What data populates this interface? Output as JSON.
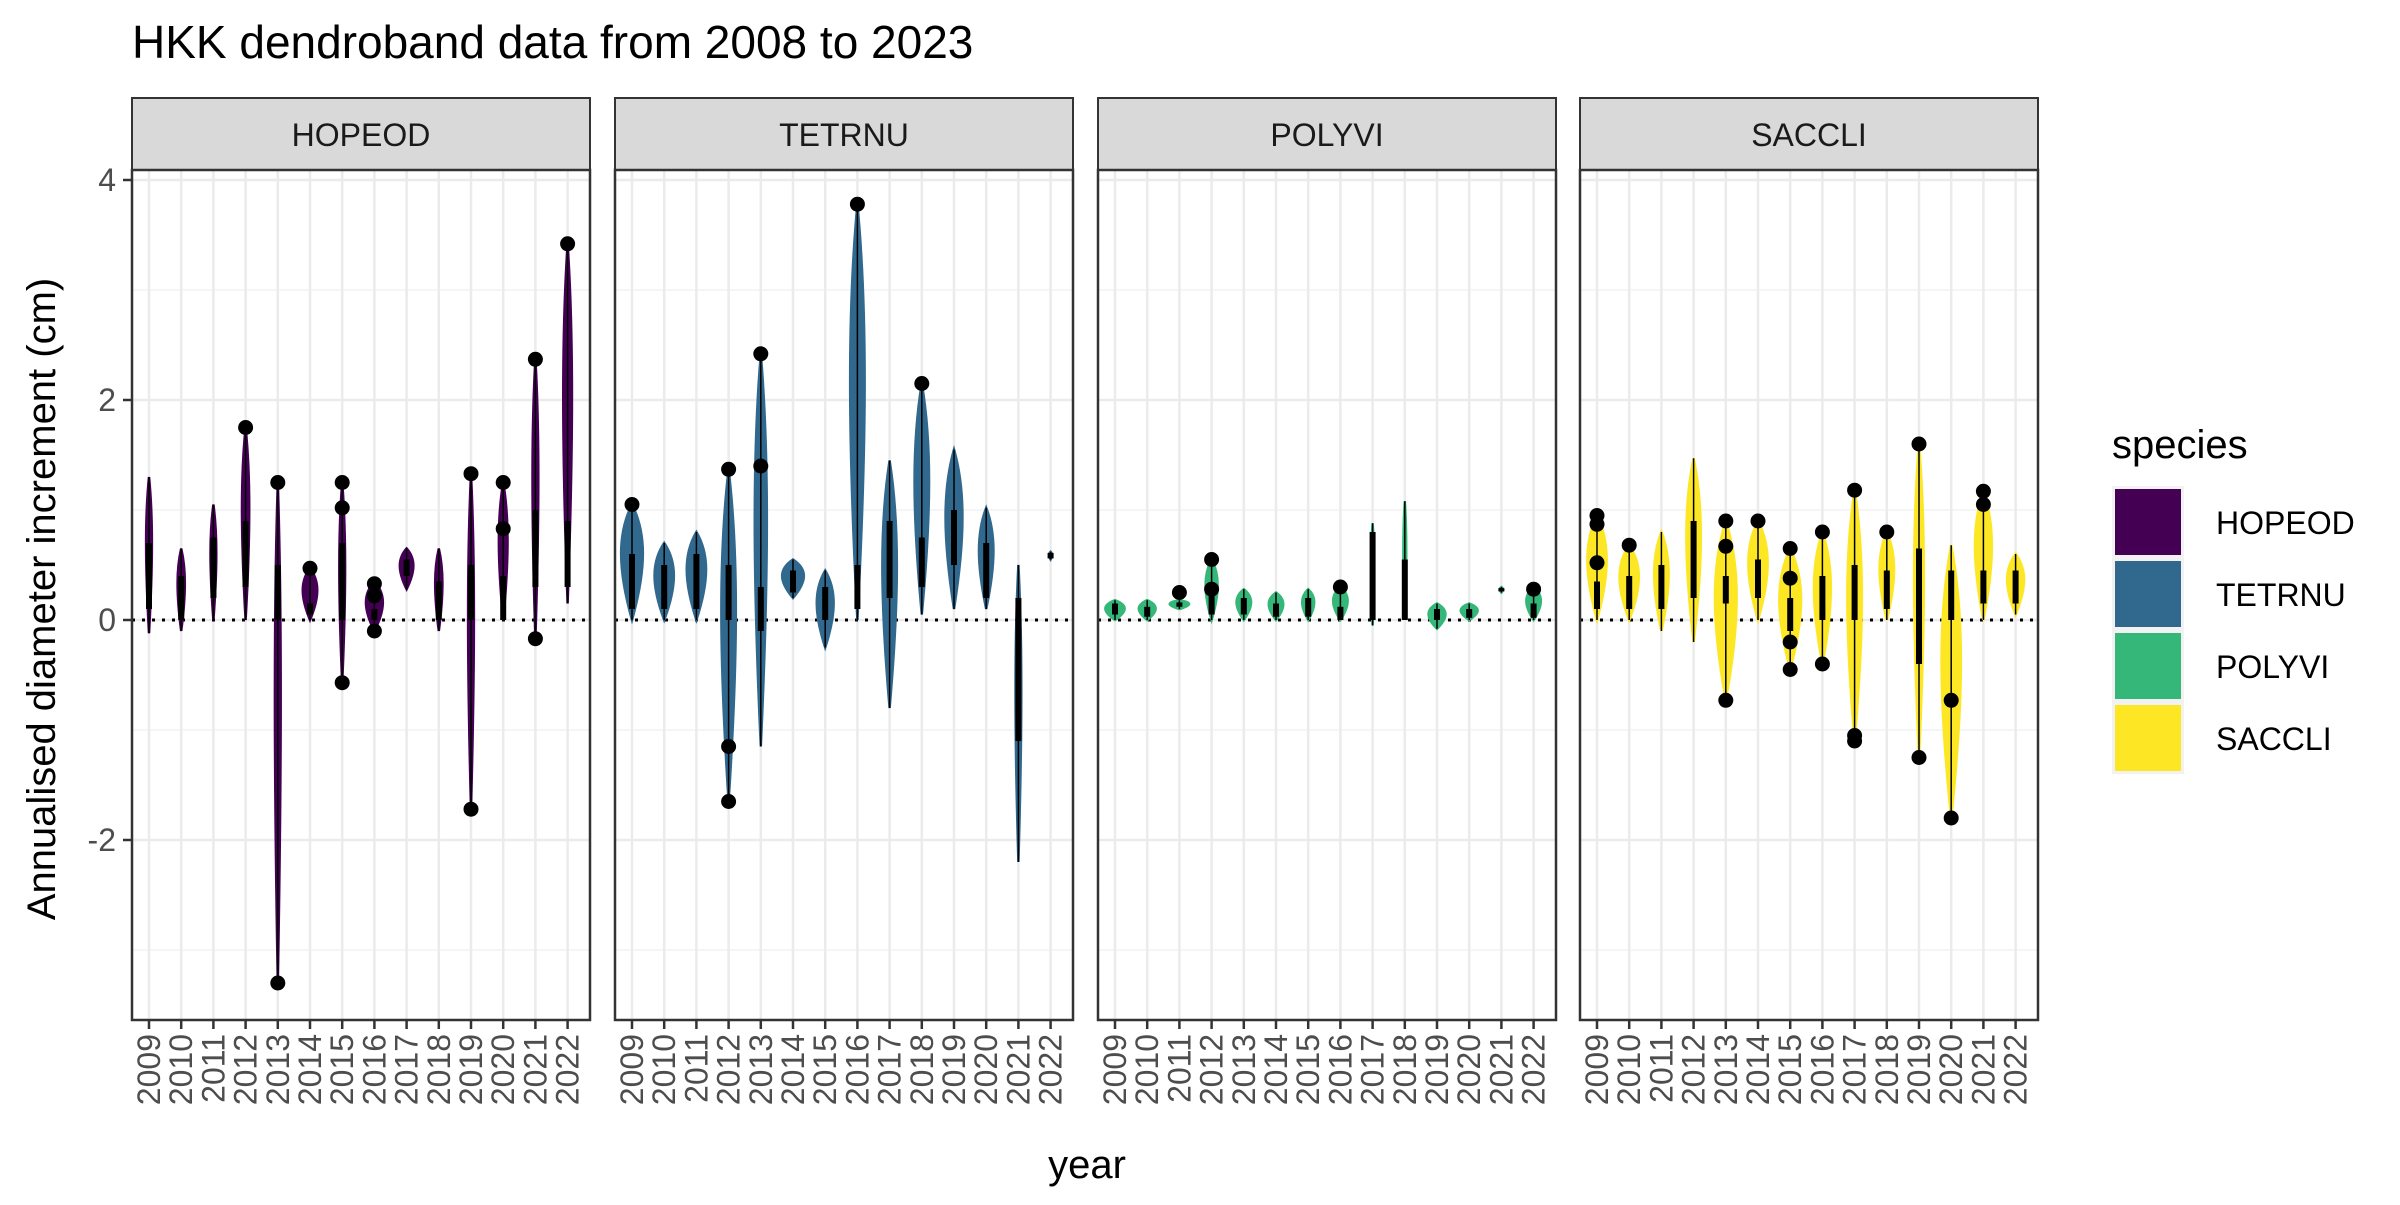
{
  "chart_data": {
    "type": "violin",
    "title": "HKK dendroband data from 2008 to 2023",
    "xlabel": "year",
    "ylabel": "Annualised diameter increment (cm)",
    "ylim": [
      -3.65,
      4.15
    ],
    "yticks": [
      -2,
      0,
      2,
      4
    ],
    "reference_line": {
      "y": 0,
      "style": "dotted"
    },
    "grid": true,
    "legend": {
      "title": "species",
      "position": "right",
      "entries": [
        {
          "name": "HOPEOD",
          "color": "#440154"
        },
        {
          "name": "TETRNU",
          "color": "#31688E"
        },
        {
          "name": "POLYVI",
          "color": "#35B779"
        },
        {
          "name": "SACCLI",
          "color": "#FDE725"
        }
      ]
    },
    "years": [
      "2009",
      "2010",
      "2011",
      "2012",
      "2013",
      "2014",
      "2015",
      "2016",
      "2017",
      "2018",
      "2019",
      "2020",
      "2021",
      "2022"
    ],
    "panels": [
      {
        "species": "HOPEOD",
        "color": "#440154",
        "violins": [
          {
            "year": "2009",
            "min": -0.12,
            "max": 1.3,
            "halfwidth": 0.12,
            "box": [
              0.1,
              0.7
            ]
          },
          {
            "year": "2010",
            "min": -0.1,
            "max": 0.65,
            "halfwidth": 0.15,
            "box": [
              0.0,
              0.4
            ]
          },
          {
            "year": "2011",
            "min": 0.0,
            "max": 1.05,
            "halfwidth": 0.12,
            "box": [
              0.2,
              0.75
            ]
          },
          {
            "year": "2012",
            "min": 0.0,
            "max": 1.75,
            "halfwidth": 0.15,
            "box": [
              0.3,
              0.9
            ]
          },
          {
            "year": "2013",
            "min": -3.3,
            "max": 1.25,
            "halfwidth": 0.12,
            "box": [
              0.0,
              0.5
            ]
          },
          {
            "year": "2014",
            "min": 0.0,
            "max": 0.47,
            "halfwidth": 0.3,
            "box": [
              0.05,
              0.15
            ]
          },
          {
            "year": "2015",
            "min": -0.57,
            "max": 1.25,
            "halfwidth": 0.12,
            "box": [
              0.0,
              0.7
            ]
          },
          {
            "year": "2016",
            "min": -0.1,
            "max": 0.35,
            "halfwidth": 0.35,
            "box": [
              0.0,
              0.1
            ]
          },
          {
            "year": "2017",
            "min": 0.28,
            "max": 0.65,
            "halfwidth": 0.28,
            "box": [
              0.4,
              0.55
            ]
          },
          {
            "year": "2018",
            "min": -0.1,
            "max": 0.65,
            "halfwidth": 0.15,
            "box": [
              0.0,
              0.35
            ]
          },
          {
            "year": "2019",
            "min": -1.72,
            "max": 1.33,
            "halfwidth": 0.12,
            "box": [
              0.0,
              0.5
            ]
          },
          {
            "year": "2020",
            "min": 0.0,
            "max": 1.25,
            "halfwidth": 0.18,
            "box": [
              0.0,
              0.4
            ]
          },
          {
            "year": "2021",
            "min": -0.17,
            "max": 2.37,
            "halfwidth": 0.12,
            "box": [
              0.3,
              1.0
            ]
          },
          {
            "year": "2022",
            "min": 0.15,
            "max": 3.42,
            "halfwidth": 0.18,
            "box": [
              0.3,
              0.9
            ]
          }
        ],
        "outliers": [
          {
            "year": "2012",
            "y": 1.75
          },
          {
            "year": "2013",
            "y": 1.25
          },
          {
            "year": "2013",
            "y": -3.3
          },
          {
            "year": "2014",
            "y": 0.47
          },
          {
            "year": "2015",
            "y": 1.25
          },
          {
            "year": "2015",
            "y": 1.02
          },
          {
            "year": "2015",
            "y": -0.57
          },
          {
            "year": "2016",
            "y": 0.33
          },
          {
            "year": "2016",
            "y": 0.22
          },
          {
            "year": "2016",
            "y": -0.1
          },
          {
            "year": "2019",
            "y": 1.33
          },
          {
            "year": "2019",
            "y": -1.72
          },
          {
            "year": "2020",
            "y": 1.25
          },
          {
            "year": "2020",
            "y": 0.83
          },
          {
            "year": "2021",
            "y": 2.37
          },
          {
            "year": "2021",
            "y": -0.17
          },
          {
            "year": "2022",
            "y": 3.42
          }
        ]
      },
      {
        "species": "TETRNU",
        "color": "#31688E",
        "violins": [
          {
            "year": "2009",
            "min": 0.0,
            "max": 1.05,
            "halfwidth": 0.45,
            "box": [
              0.1,
              0.6
            ]
          },
          {
            "year": "2010",
            "min": 0.0,
            "max": 0.7,
            "halfwidth": 0.4,
            "box": [
              0.1,
              0.5
            ]
          },
          {
            "year": "2011",
            "min": 0.0,
            "max": 0.8,
            "halfwidth": 0.4,
            "box": [
              0.1,
              0.6
            ]
          },
          {
            "year": "2012",
            "min": -1.65,
            "max": 1.37,
            "halfwidth": 0.3,
            "box": [
              0.0,
              0.5
            ]
          },
          {
            "year": "2013",
            "min": -1.15,
            "max": 2.42,
            "halfwidth": 0.25,
            "box": [
              -0.1,
              0.3
            ]
          },
          {
            "year": "2014",
            "min": 0.2,
            "max": 0.55,
            "halfwidth": 0.45,
            "box": [
              0.25,
              0.45
            ]
          },
          {
            "year": "2015",
            "min": -0.25,
            "max": 0.45,
            "halfwidth": 0.35,
            "box": [
              0.0,
              0.3
            ]
          },
          {
            "year": "2016",
            "min": 0.0,
            "max": 3.78,
            "halfwidth": 0.3,
            "box": [
              0.1,
              0.5
            ]
          },
          {
            "year": "2017",
            "min": -0.8,
            "max": 1.45,
            "halfwidth": 0.3,
            "box": [
              0.2,
              0.9
            ]
          },
          {
            "year": "2018",
            "min": 0.05,
            "max": 2.15,
            "halfwidth": 0.3,
            "box": [
              0.3,
              0.75
            ]
          },
          {
            "year": "2019",
            "min": 0.1,
            "max": 1.55,
            "halfwidth": 0.35,
            "box": [
              0.5,
              1.0
            ]
          },
          {
            "year": "2020",
            "min": 0.1,
            "max": 1.02,
            "halfwidth": 0.3,
            "box": [
              0.2,
              0.7
            ]
          },
          {
            "year": "2021",
            "min": -2.2,
            "max": 0.5,
            "halfwidth": 0.12,
            "box": [
              -1.1,
              0.2
            ]
          },
          {
            "year": "2022",
            "min": 0.55,
            "max": 0.62,
            "halfwidth": 0.05,
            "box": [
              0.56,
              0.61
            ]
          }
        ],
        "outliers": [
          {
            "year": "2009",
            "y": 1.05
          },
          {
            "year": "2012",
            "y": 1.37
          },
          {
            "year": "2012",
            "y": -1.15
          },
          {
            "year": "2012",
            "y": -1.65
          },
          {
            "year": "2013",
            "y": 2.42
          },
          {
            "year": "2013",
            "y": 1.4
          },
          {
            "year": "2016",
            "y": 3.78
          },
          {
            "year": "2018",
            "y": 2.15
          }
        ]
      },
      {
        "species": "POLYVI",
        "color": "#35B779",
        "violins": [
          {
            "year": "2009",
            "min": 0.0,
            "max": 0.18,
            "halfwidth": 0.4,
            "box": [
              0.05,
              0.15
            ]
          },
          {
            "year": "2010",
            "min": 0.0,
            "max": 0.18,
            "halfwidth": 0.35,
            "box": [
              0.03,
              0.12
            ]
          },
          {
            "year": "2011",
            "min": 0.1,
            "max": 0.18,
            "halfwidth": 0.4,
            "box": [
              0.12,
              0.16
            ]
          },
          {
            "year": "2012",
            "min": 0.0,
            "max": 0.55,
            "halfwidth": 0.25,
            "box": [
              0.05,
              0.3
            ]
          },
          {
            "year": "2013",
            "min": 0.0,
            "max": 0.28,
            "halfwidth": 0.3,
            "box": [
              0.05,
              0.2
            ]
          },
          {
            "year": "2014",
            "min": 0.0,
            "max": 0.25,
            "halfwidth": 0.3,
            "box": [
              0.03,
              0.15
            ]
          },
          {
            "year": "2015",
            "min": 0.0,
            "max": 0.28,
            "halfwidth": 0.25,
            "box": [
              0.03,
              0.2
            ]
          },
          {
            "year": "2016",
            "min": 0.0,
            "max": 0.3,
            "halfwidth": 0.3,
            "box": [
              0.0,
              0.12
            ]
          },
          {
            "year": "2017",
            "min": -0.05,
            "max": 0.88,
            "halfwidth": 0.06,
            "box": [
              0.0,
              0.8
            ]
          },
          {
            "year": "2018",
            "min": 0.0,
            "max": 1.08,
            "halfwidth": 0.06,
            "box": [
              0.0,
              0.55
            ]
          },
          {
            "year": "2019",
            "min": -0.08,
            "max": 0.15,
            "halfwidth": 0.35,
            "box": [
              0.0,
              0.1
            ]
          },
          {
            "year": "2020",
            "min": 0.0,
            "max": 0.15,
            "halfwidth": 0.35,
            "box": [
              0.02,
              0.1
            ]
          },
          {
            "year": "2021",
            "min": 0.25,
            "max": 0.3,
            "halfwidth": 0.05,
            "box": [
              0.26,
              0.29
            ]
          },
          {
            "year": "2022",
            "min": 0.0,
            "max": 0.3,
            "halfwidth": 0.3,
            "box": [
              0.02,
              0.15
            ]
          }
        ],
        "outliers": [
          {
            "year": "2011",
            "y": 0.25
          },
          {
            "year": "2012",
            "y": 0.55
          },
          {
            "year": "2012",
            "y": 0.28
          },
          {
            "year": "2016",
            "y": 0.3
          },
          {
            "year": "2022",
            "y": 0.28
          }
        ]
      },
      {
        "species": "SACCLI",
        "color": "#FDE725",
        "violins": [
          {
            "year": "2009",
            "min": 0.0,
            "max": 0.95,
            "halfwidth": 0.4,
            "box": [
              0.1,
              0.35
            ]
          },
          {
            "year": "2010",
            "min": 0.0,
            "max": 0.68,
            "halfwidth": 0.4,
            "box": [
              0.1,
              0.4
            ]
          },
          {
            "year": "2011",
            "min": -0.1,
            "max": 0.8,
            "halfwidth": 0.3,
            "box": [
              0.1,
              0.5
            ]
          },
          {
            "year": "2012",
            "min": -0.2,
            "max": 1.47,
            "halfwidth": 0.3,
            "box": [
              0.2,
              0.9
            ]
          },
          {
            "year": "2013",
            "min": -0.73,
            "max": 0.9,
            "halfwidth": 0.45,
            "box": [
              0.15,
              0.4
            ]
          },
          {
            "year": "2014",
            "min": 0.0,
            "max": 0.9,
            "halfwidth": 0.4,
            "box": [
              0.2,
              0.55
            ]
          },
          {
            "year": "2015",
            "min": -0.45,
            "max": 0.65,
            "halfwidth": 0.45,
            "box": [
              -0.1,
              0.2
            ]
          },
          {
            "year": "2016",
            "min": -0.4,
            "max": 0.8,
            "halfwidth": 0.35,
            "box": [
              0.0,
              0.4
            ]
          },
          {
            "year": "2017",
            "min": -1.1,
            "max": 1.18,
            "halfwidth": 0.3,
            "box": [
              0.0,
              0.5
            ]
          },
          {
            "year": "2018",
            "min": 0.0,
            "max": 0.8,
            "halfwidth": 0.3,
            "box": [
              0.1,
              0.45
            ]
          },
          {
            "year": "2019",
            "min": -1.25,
            "max": 1.6,
            "halfwidth": 0.2,
            "box": [
              -0.4,
              0.65
            ]
          },
          {
            "year": "2020",
            "min": -1.8,
            "max": 0.68,
            "halfwidth": 0.4,
            "box": [
              0.0,
              0.45
            ]
          },
          {
            "year": "2021",
            "min": 0.0,
            "max": 1.17,
            "halfwidth": 0.35,
            "box": [
              0.15,
              0.45
            ]
          },
          {
            "year": "2022",
            "min": 0.05,
            "max": 0.6,
            "halfwidth": 0.35,
            "box": [
              0.15,
              0.45
            ]
          }
        ],
        "outliers": [
          {
            "year": "2009",
            "y": 0.95
          },
          {
            "year": "2009",
            "y": 0.87
          },
          {
            "year": "2009",
            "y": 0.52
          },
          {
            "year": "2010",
            "y": 0.68
          },
          {
            "year": "2013",
            "y": 0.9
          },
          {
            "year": "2013",
            "y": 0.67
          },
          {
            "year": "2013",
            "y": -0.73
          },
          {
            "year": "2014",
            "y": 0.9
          },
          {
            "year": "2015",
            "y": 0.65
          },
          {
            "year": "2015",
            "y": 0.38
          },
          {
            "year": "2015",
            "y": -0.2
          },
          {
            "year": "2015",
            "y": -0.45
          },
          {
            "year": "2016",
            "y": 0.8
          },
          {
            "year": "2016",
            "y": -0.4
          },
          {
            "year": "2017",
            "y": 1.18
          },
          {
            "year": "2017",
            "y": -1.05
          },
          {
            "year": "2017",
            "y": -1.1
          },
          {
            "year": "2018",
            "y": 0.8
          },
          {
            "year": "2019",
            "y": 1.6
          },
          {
            "year": "2019",
            "y": -1.25
          },
          {
            "year": "2020",
            "y": -0.73
          },
          {
            "year": "2020",
            "y": -1.8
          },
          {
            "year": "2021",
            "y": 1.17
          },
          {
            "year": "2021",
            "y": 1.05
          }
        ]
      }
    ]
  }
}
